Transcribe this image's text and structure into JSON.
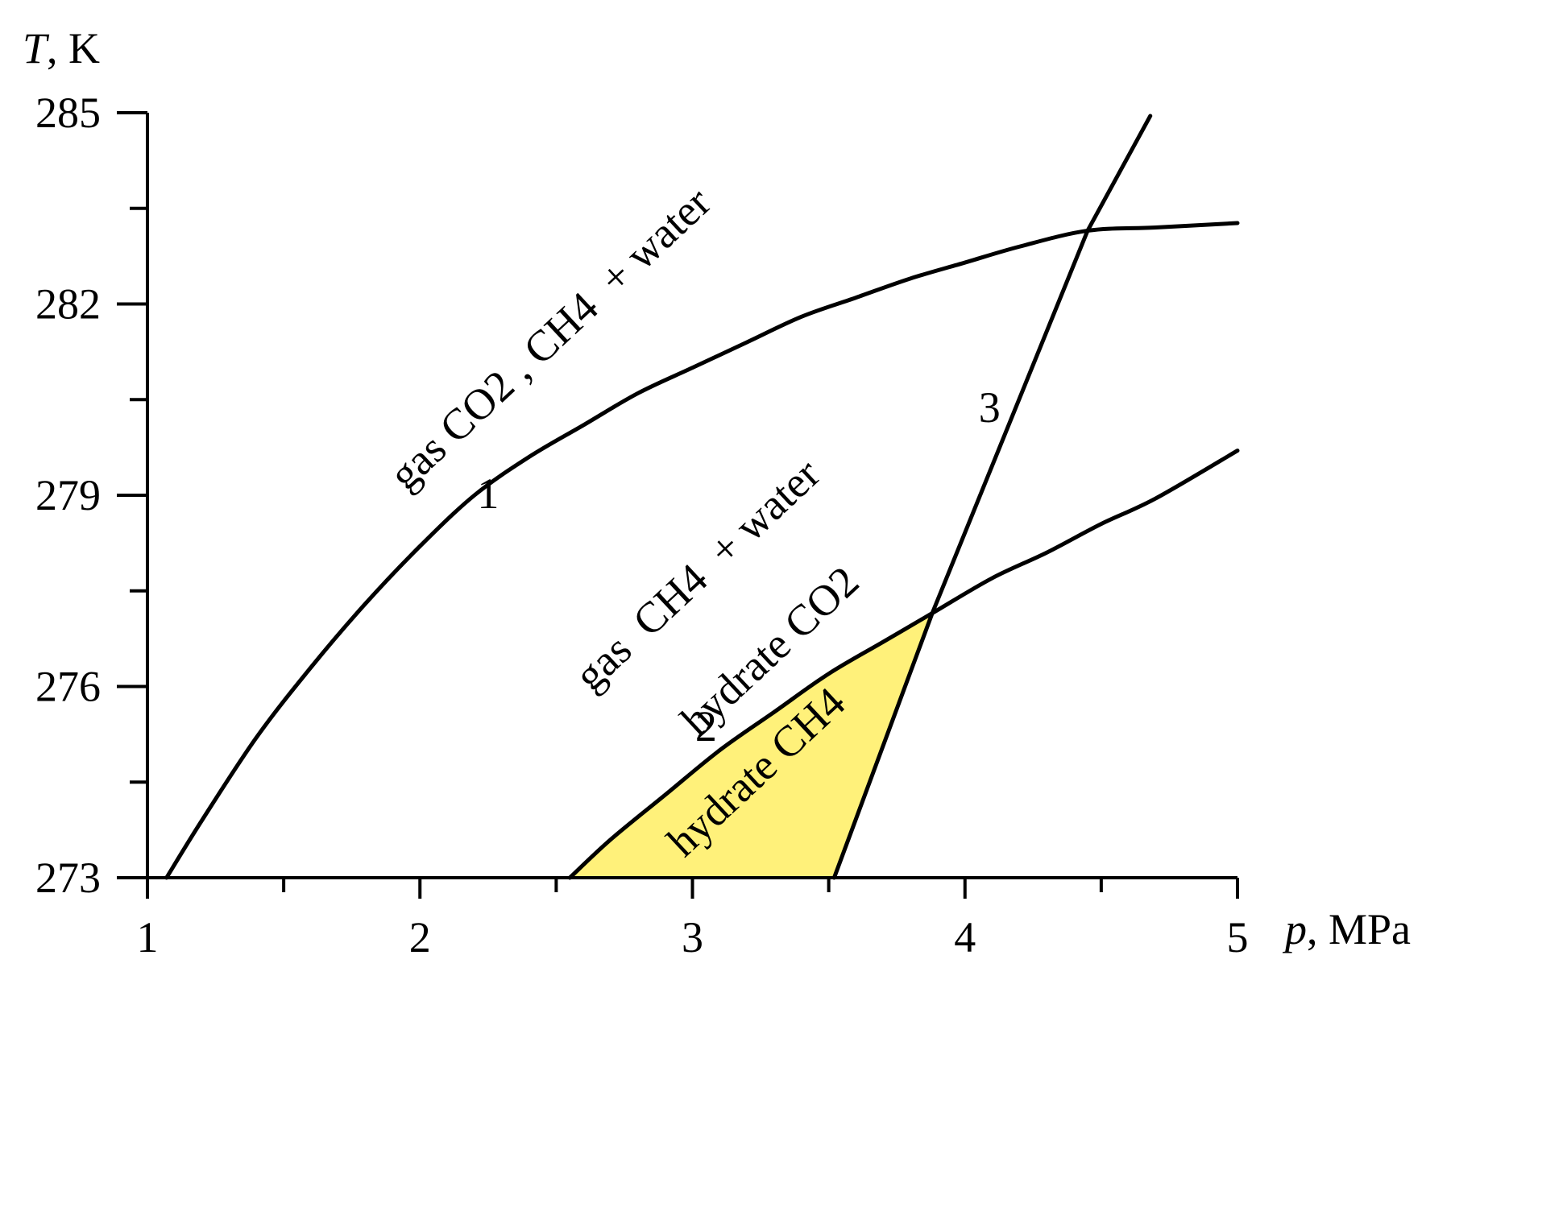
{
  "chart_data": {
    "type": "line",
    "x_axis": {
      "label_var": "p",
      "label_unit": ", MPa",
      "range": [
        1,
        5
      ],
      "major_ticks": [
        1,
        2,
        3,
        4,
        5
      ],
      "minor_ticks": [
        1.5,
        2.5,
        3.5,
        4.5
      ],
      "tick_labels": [
        "1",
        "2",
        "3",
        "4",
        "5"
      ]
    },
    "y_axis": {
      "label_var": "T",
      "label_unit": ", K",
      "range": [
        273,
        285
      ],
      "major_ticks": [
        273,
        276,
        279,
        282,
        285
      ],
      "minor_ticks": [
        274.5,
        277.5,
        280.5,
        283.5
      ],
      "tick_labels": [
        "273",
        "276",
        "279",
        "282",
        "285"
      ]
    },
    "series": [
      {
        "id": "curve-1",
        "label": "1",
        "points": [
          [
            1.07,
            273.0
          ],
          [
            1.2,
            273.9
          ],
          [
            1.4,
            275.2
          ],
          [
            1.6,
            276.3
          ],
          [
            1.8,
            277.3
          ],
          [
            2.0,
            278.2
          ],
          [
            2.2,
            279.0
          ],
          [
            2.4,
            279.6
          ],
          [
            2.6,
            280.1
          ],
          [
            2.8,
            280.6
          ],
          [
            3.0,
            281.0
          ],
          [
            3.2,
            281.4
          ],
          [
            3.4,
            281.8
          ],
          [
            3.6,
            282.1
          ],
          [
            3.8,
            282.4
          ],
          [
            4.0,
            282.65
          ],
          [
            4.2,
            282.9
          ],
          [
            4.45,
            283.15
          ],
          [
            4.7,
            283.2
          ],
          [
            5.0,
            283.27
          ]
        ]
      },
      {
        "id": "curve-2",
        "label": "2",
        "points": [
          [
            2.55,
            273.0
          ],
          [
            2.7,
            273.6
          ],
          [
            2.9,
            274.3
          ],
          [
            3.1,
            275.0
          ],
          [
            3.3,
            275.6
          ],
          [
            3.5,
            276.2
          ],
          [
            3.7,
            276.7
          ],
          [
            3.88,
            277.15
          ],
          [
            4.1,
            277.7
          ],
          [
            4.3,
            278.1
          ],
          [
            4.5,
            278.55
          ],
          [
            4.7,
            278.95
          ],
          [
            5.0,
            279.7
          ]
        ]
      },
      {
        "id": "curve-3",
        "label": "3",
        "points": [
          [
            3.52,
            273.0
          ],
          [
            3.88,
            277.15
          ],
          [
            4.45,
            283.15
          ],
          [
            4.68,
            284.95
          ]
        ]
      }
    ],
    "shaded_region": {
      "label": "hydrate CH4",
      "color": "#fff17a",
      "boundary": [
        [
          2.55,
          273.0
        ],
        [
          2.7,
          273.6
        ],
        [
          2.9,
          274.3
        ],
        [
          3.1,
          275.0
        ],
        [
          3.3,
          275.6
        ],
        [
          3.5,
          276.2
        ],
        [
          3.7,
          276.7
        ],
        [
          3.88,
          277.15
        ],
        [
          3.52,
          273.0
        ]
      ]
    },
    "region_labels": [
      {
        "id": "region-gas-co2-ch4-water",
        "text": "gas CO2 , CH4  + water",
        "p": 1.95,
        "T": 279.05,
        "angle": -43
      },
      {
        "id": "region-gas-ch4-water",
        "text": "gas  CH4  + water",
        "p": 2.63,
        "T": 275.9,
        "angle": -43
      },
      {
        "id": "region-hydrate-co2",
        "text": "hydrate CO2",
        "p": 3.02,
        "T": 275.2,
        "angle": -43
      },
      {
        "id": "region-hydrate-ch4",
        "text": "hydrate CH4",
        "p": 2.97,
        "T": 273.3,
        "angle": -43
      }
    ],
    "curve_labels": [
      {
        "id": "curve-label-1",
        "text": "1",
        "p": 2.25,
        "T": 278.8
      },
      {
        "id": "curve-label-2",
        "text": "2",
        "p": 3.05,
        "T": 275.15
      },
      {
        "id": "curve-label-3",
        "text": "3",
        "p": 4.09,
        "T": 280.15
      }
    ],
    "grid": false,
    "legend": "none"
  }
}
